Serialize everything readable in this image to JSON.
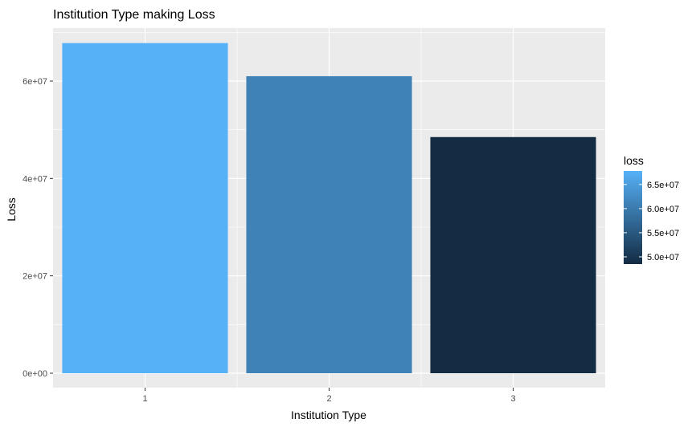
{
  "chart_data": {
    "type": "bar",
    "title": "Institution Type making Loss",
    "xlabel": "Institution Type",
    "ylabel": "Loss",
    "categories": [
      "1",
      "2",
      "3"
    ],
    "values": [
      67800000,
      61000000,
      48500000
    ],
    "ylim": [
      0,
      70000000
    ],
    "yticks": [
      0,
      20000000,
      40000000,
      60000000
    ],
    "ytick_labels": [
      "0e+00",
      "2e+07",
      "4e+07",
      "6e+07"
    ],
    "grid": true,
    "legend": {
      "title": "loss",
      "placement": "right",
      "type": "colorbar",
      "range": [
        48500000,
        67800000
      ],
      "ticks": [
        50000000,
        55000000,
        60000000,
        65000000
      ],
      "tick_labels": [
        "5.0e+07",
        "5.5e+07",
        "6.0e+07",
        "6.5e+07"
      ],
      "low_color": "#132b43",
      "high_color": "#56b1f7"
    },
    "panel_background": "#ebebeb",
    "gridline_color": "#ffffff"
  }
}
